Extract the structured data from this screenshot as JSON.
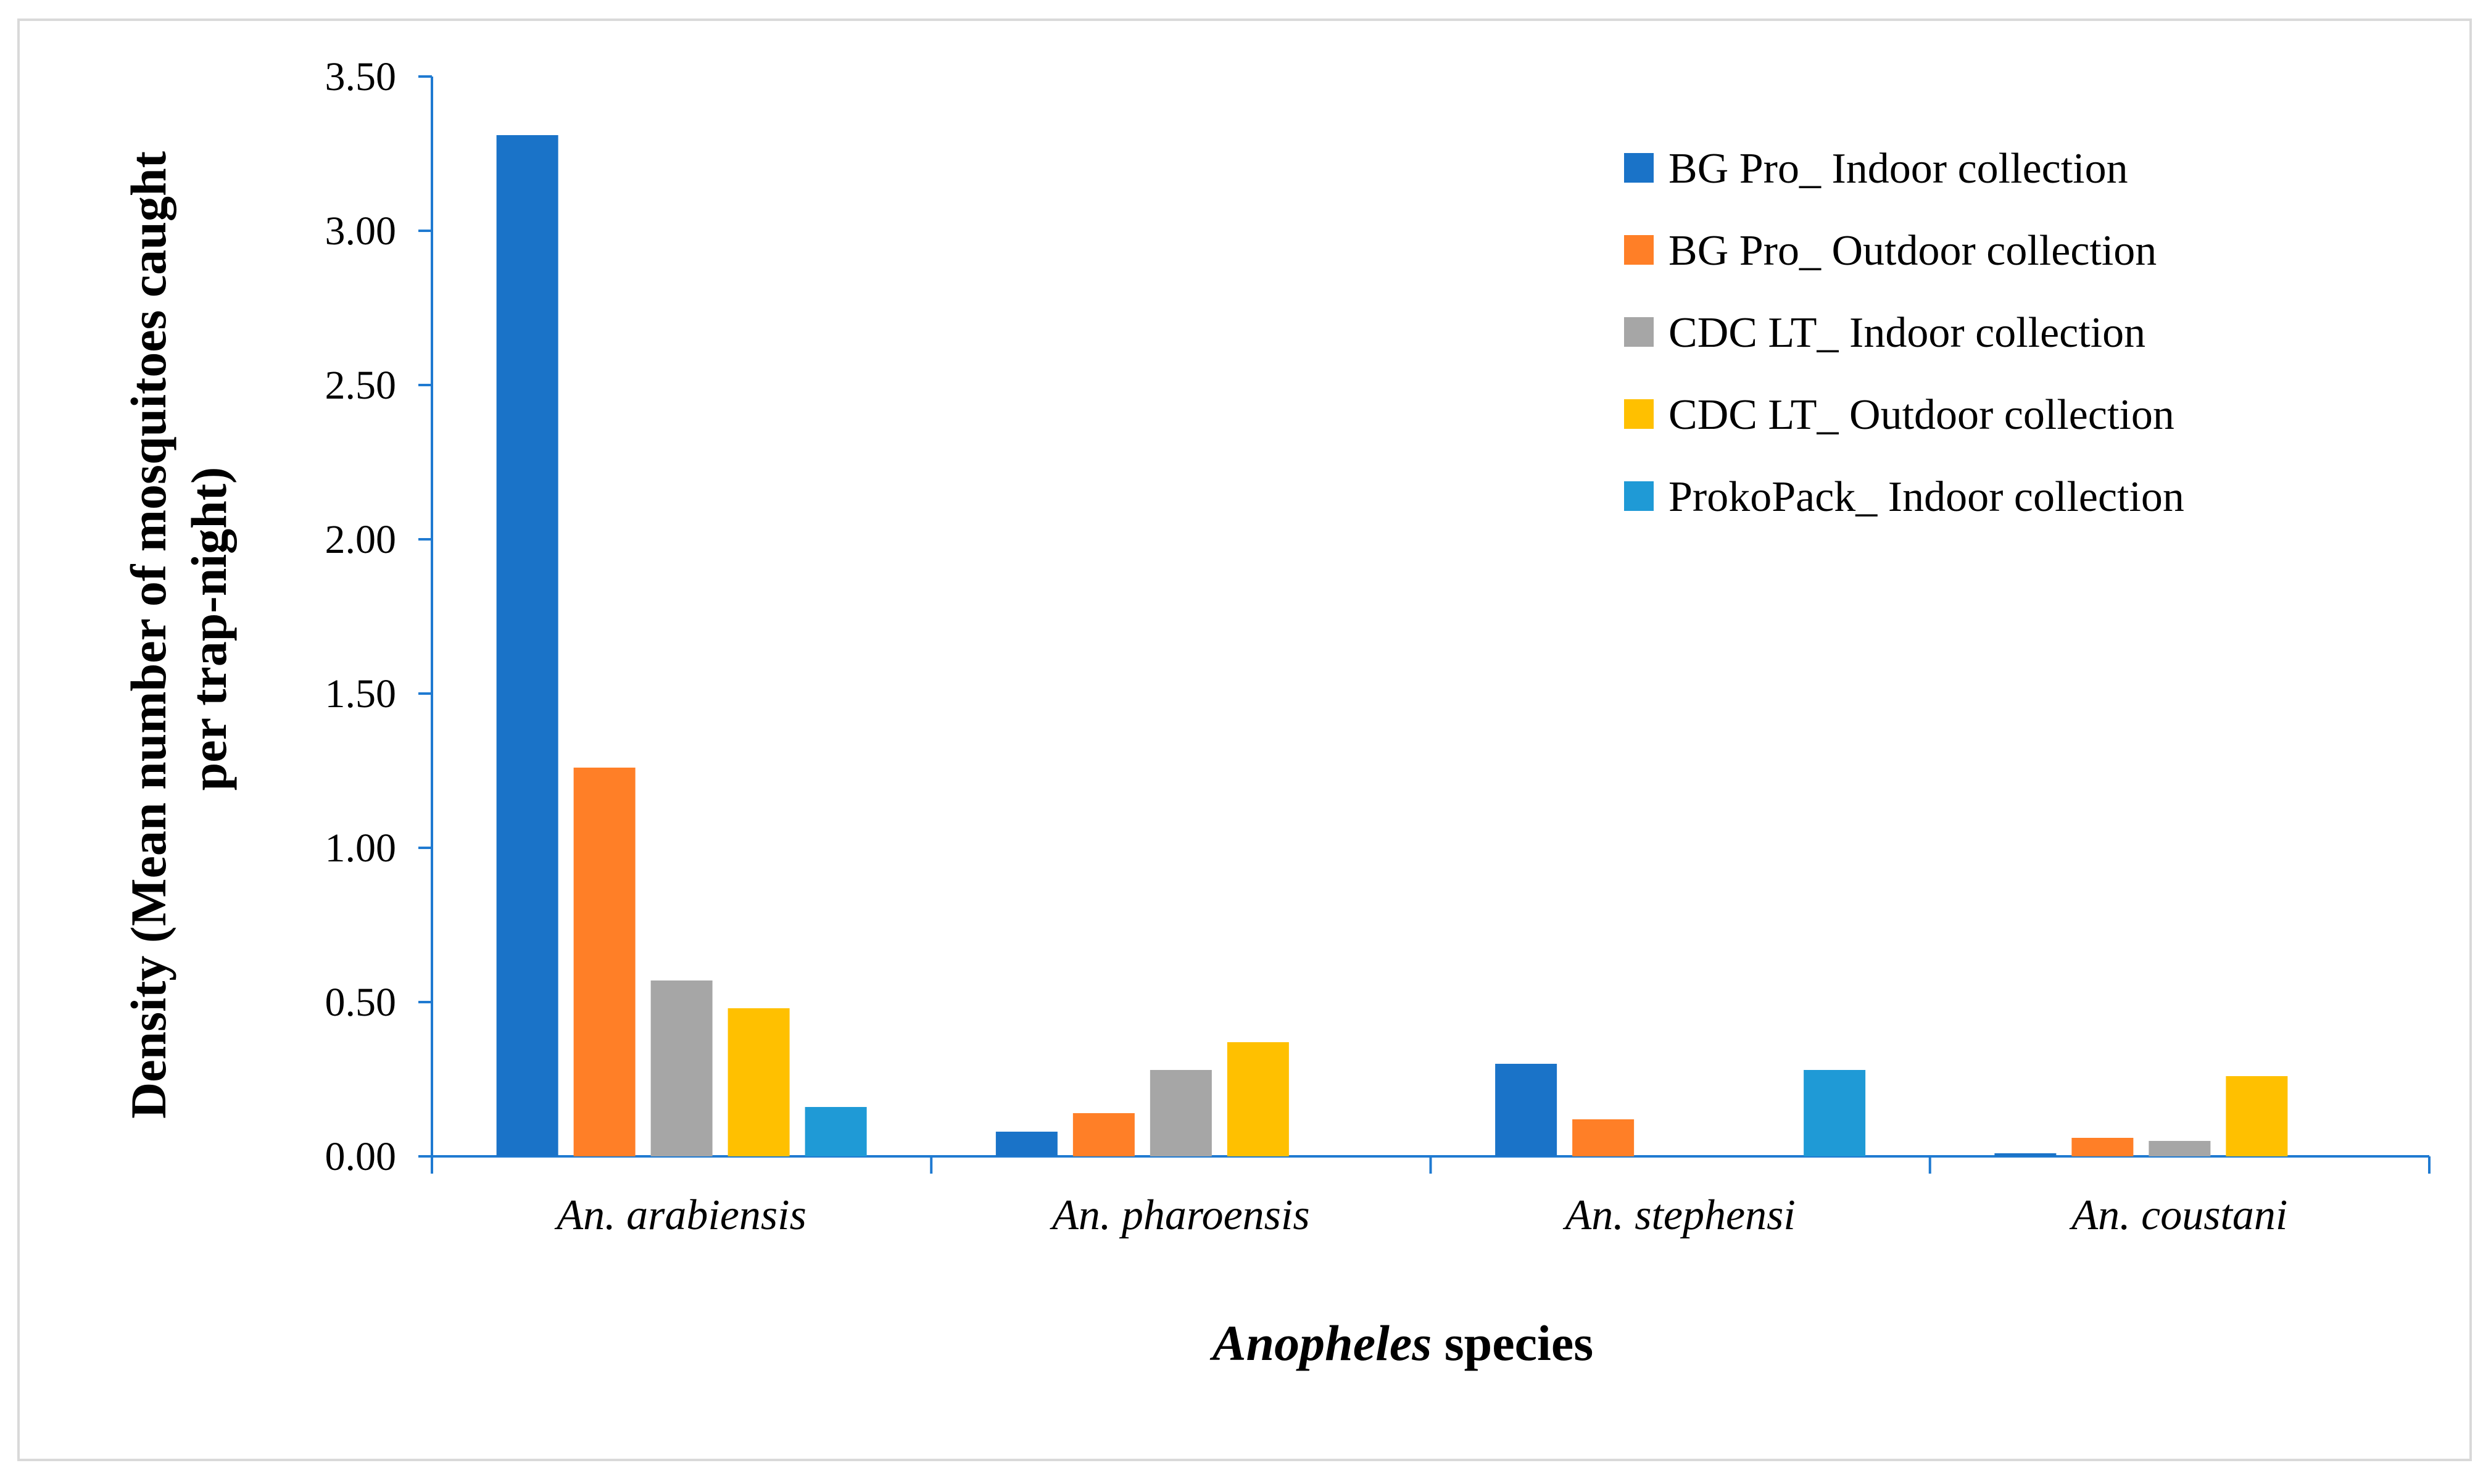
{
  "chart_data": {
    "type": "bar",
    "categories": [
      "An. arabiensis",
      "An. pharoensis",
      "An. stephensi",
      "An. coustani"
    ],
    "series": [
      {
        "name": "BG Pro_ Indoor collection",
        "color": "#1a73c8",
        "values": [
          3.31,
          0.08,
          0.3,
          0.01
        ]
      },
      {
        "name": "BG Pro_ Outdoor collection",
        "color": "#ff7f27",
        "values": [
          1.26,
          0.14,
          0.12,
          0.06
        ]
      },
      {
        "name": "CDC LT_ Indoor collection",
        "color": "#a6a6a6",
        "values": [
          0.57,
          0.28,
          0.0,
          0.05
        ]
      },
      {
        "name": "CDC LT_ Outdoor collection",
        "color": "#ffc000",
        "values": [
          0.48,
          0.37,
          0.0,
          0.26
        ]
      },
      {
        "name": "ProkoPack_ Indoor collection",
        "color": "#1f9ad6",
        "values": [
          0.16,
          0.0,
          0.28,
          0.0
        ]
      }
    ],
    "ylim": [
      0,
      3.5
    ],
    "yticks": [
      "0.00",
      "0.50",
      "1.00",
      "1.50",
      "2.00",
      "2.50",
      "3.00",
      "3.50"
    ],
    "ylabel_line1": "Density (Mean number of mosquitoes caught",
    "ylabel_line2": "per trap-night)",
    "xlabel_italic": "Anopheles",
    "xlabel_rest": " species",
    "axis_color": "#1f7ad1",
    "legend_position": "top-right"
  }
}
